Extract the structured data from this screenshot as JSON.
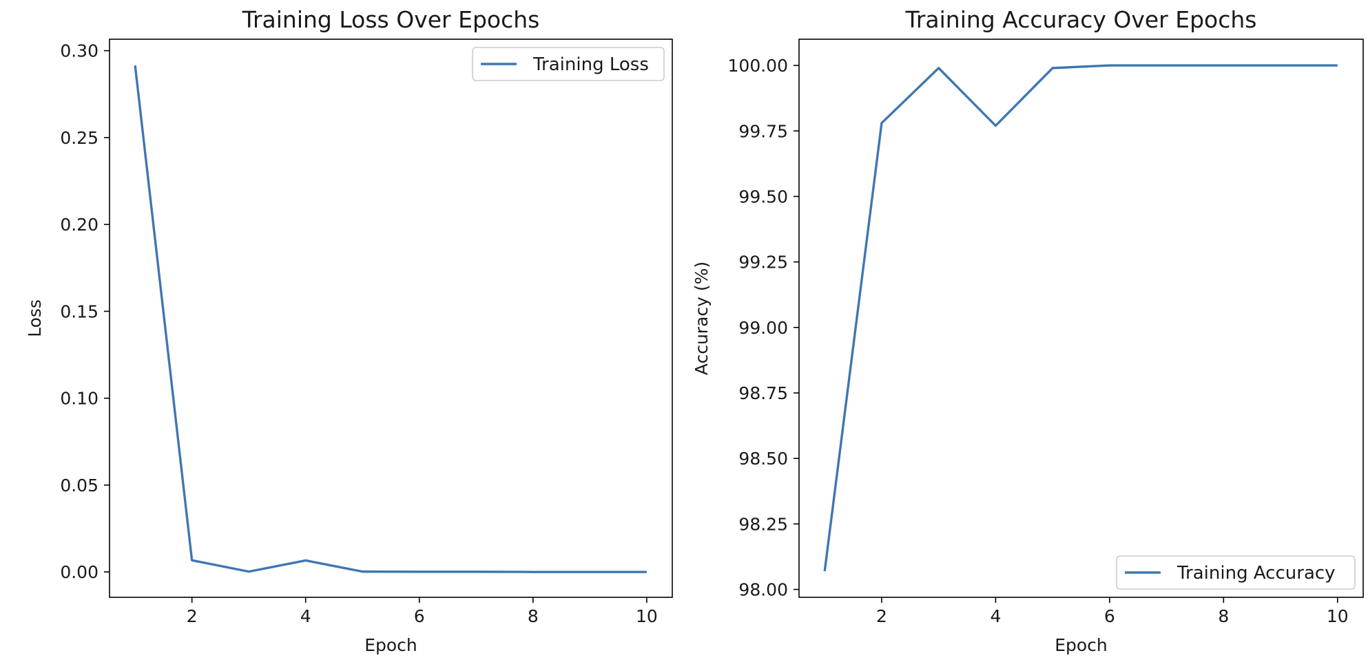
{
  "chart_data": [
    {
      "type": "line",
      "title": "Training Loss Over Epochs",
      "xlabel": "Epoch",
      "ylabel": "Loss",
      "xlim": [
        0.55,
        10.45
      ],
      "ylim": [
        -0.0146,
        0.3066
      ],
      "x_ticks": [
        2,
        4,
        6,
        8,
        10
      ],
      "y_ticks": [
        0.0,
        0.05,
        0.1,
        0.15,
        0.2,
        0.25,
        0.3
      ],
      "y_tick_labels": [
        "0.00",
        "0.05",
        "0.10",
        "0.15",
        "0.20",
        "0.25",
        "0.30"
      ],
      "grid": false,
      "legend_position": "upper right",
      "x": [
        1,
        2,
        3,
        4,
        5,
        6,
        7,
        8,
        9,
        10
      ],
      "series": [
        {
          "name": "Training Loss",
          "color": "#3f77b0",
          "values": [
            0.2915,
            0.0067,
            0.0002,
            0.0066,
            0.0002,
            0.0001,
            0.0001,
            0.0,
            0.0,
            0.0
          ]
        }
      ]
    },
    {
      "type": "line",
      "title": "Training Accuracy Over Epochs",
      "xlabel": "Epoch",
      "ylabel": "Accuracy (%)",
      "xlim": [
        0.55,
        10.45
      ],
      "ylim": [
        97.97,
        100.1
      ],
      "x_ticks": [
        2,
        4,
        6,
        8,
        10
      ],
      "y_ticks": [
        98.0,
        98.25,
        98.5,
        98.75,
        99.0,
        99.25,
        99.5,
        99.75,
        100.0
      ],
      "y_tick_labels": [
        "98.00",
        "98.25",
        "98.50",
        "98.75",
        "99.00",
        "99.25",
        "99.50",
        "99.75",
        "100.00"
      ],
      "grid": false,
      "legend_position": "lower right",
      "x": [
        1,
        2,
        3,
        4,
        5,
        6,
        7,
        8,
        9,
        10
      ],
      "series": [
        {
          "name": "Training Accuracy",
          "color": "#3f77b0",
          "values": [
            98.07,
            99.78,
            99.99,
            99.77,
            99.99,
            100.0,
            100.0,
            100.0,
            100.0,
            100.0
          ]
        }
      ]
    }
  ]
}
